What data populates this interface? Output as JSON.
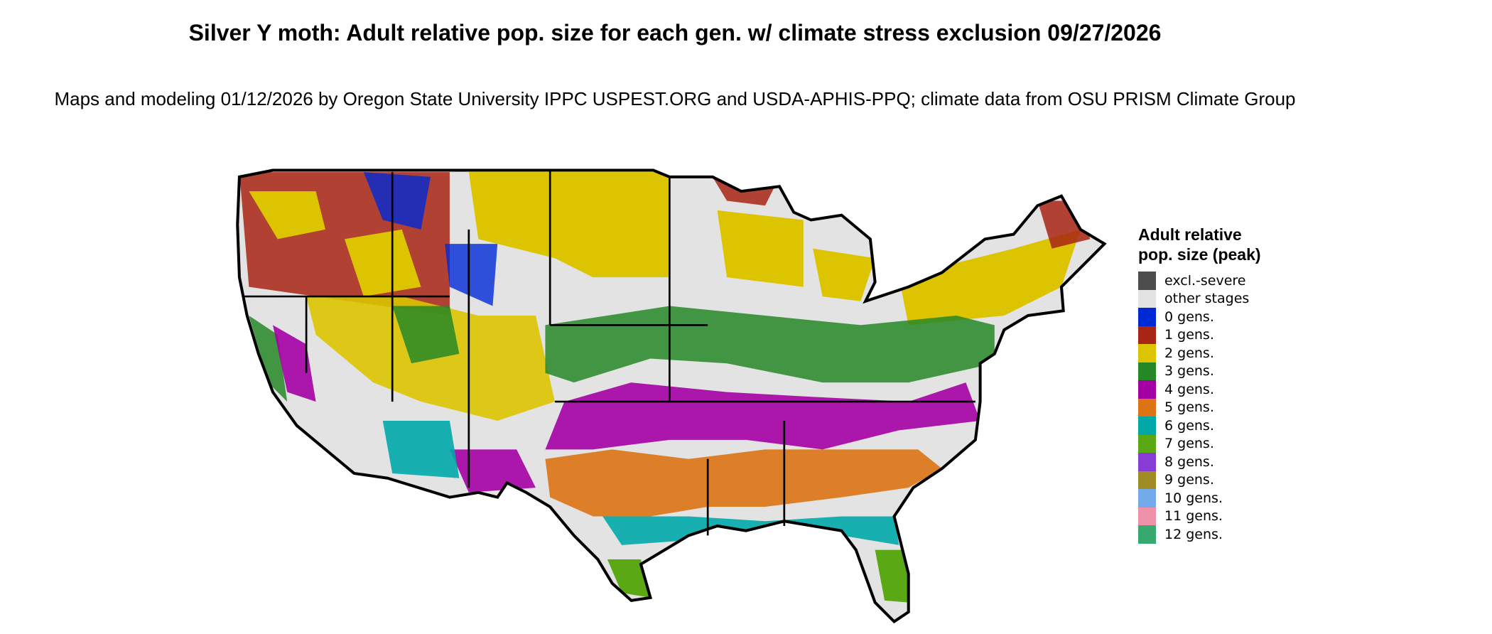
{
  "title": "Silver Y moth: Adult relative pop. size for each gen. w/ climate stress exclusion 09/27/2026",
  "subtitle": "Maps and modeling 01/12/2026 by Oregon State University IPPC USPEST.ORG and USDA-APHIS-PPQ; climate data from OSU PRISM Climate Group",
  "legend": {
    "title": "Adult relative pop. size (peak)",
    "items": [
      {
        "label": "excl.-severe",
        "color": "#4d4d4d"
      },
      {
        "label": "other stages",
        "color": "#e3e3e3"
      },
      {
        "label": "0 gens.",
        "color": "#0029d6"
      },
      {
        "label": "1 gens.",
        "color": "#a82414"
      },
      {
        "label": "2 gens.",
        "color": "#dcc400"
      },
      {
        "label": "3 gens.",
        "color": "#268726"
      },
      {
        "label": "4 gens.",
        "color": "#a300a3"
      },
      {
        "label": "5 gens.",
        "color": "#dc7314"
      },
      {
        "label": "6 gens.",
        "color": "#00a8a8"
      },
      {
        "label": "7 gens.",
        "color": "#5aa814"
      },
      {
        "label": "8 gens.",
        "color": "#873cd6"
      },
      {
        "label": "9 gens.",
        "color": "#a08c24"
      },
      {
        "label": "10 gens.",
        "color": "#73aaeb"
      },
      {
        "label": "11 gens.",
        "color": "#f091aa"
      },
      {
        "label": "12 gens.",
        "color": "#37a86e"
      }
    ]
  },
  "map_regions": {
    "northwest": "1 gens.",
    "northern_plains_great_lakes_northeast": "2 gens.",
    "central_band": "3 gens.",
    "southern_midwest_band": "4 gens.",
    "deep_south": "5 gens.",
    "gulf_coast": "6 gens.",
    "south_texas_florida": "7 gens.",
    "rockies_high_elevation": "0 gens."
  }
}
